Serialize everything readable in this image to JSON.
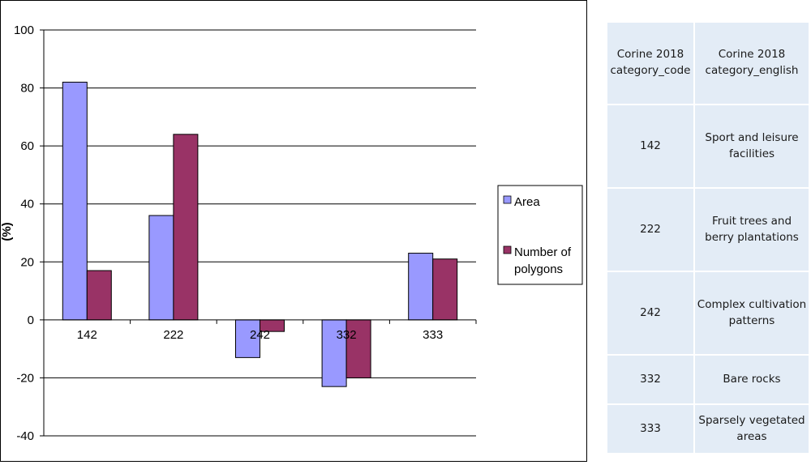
{
  "chart_data": {
    "type": "bar",
    "ylabel": "(%)",
    "ylim": [
      -40,
      100
    ],
    "yticks": [
      -40,
      -20,
      0,
      20,
      40,
      60,
      80,
      100
    ],
    "categories": [
      "142",
      "222",
      "242",
      "332",
      "333"
    ],
    "grid": true,
    "legend_position": "right",
    "series": [
      {
        "name": "Area",
        "color": "#9999ff",
        "values": [
          82,
          36,
          -13,
          -23,
          23
        ]
      },
      {
        "name": "Number of polygons",
        "color": "#993366",
        "values": [
          17,
          64,
          -4,
          -20,
          21
        ]
      }
    ]
  },
  "table": {
    "headers": [
      "Corine 2018 category_code",
      "Corine 2018 category_english"
    ],
    "rows": [
      [
        "142",
        "Sport and leisure facilities"
      ],
      [
        "222",
        "Fruit trees and berry plantations"
      ],
      [
        "242",
        "Complex cultivation patterns"
      ],
      [
        "332",
        "Bare rocks"
      ],
      [
        "333",
        "Sparsely vegetated areas"
      ]
    ]
  }
}
